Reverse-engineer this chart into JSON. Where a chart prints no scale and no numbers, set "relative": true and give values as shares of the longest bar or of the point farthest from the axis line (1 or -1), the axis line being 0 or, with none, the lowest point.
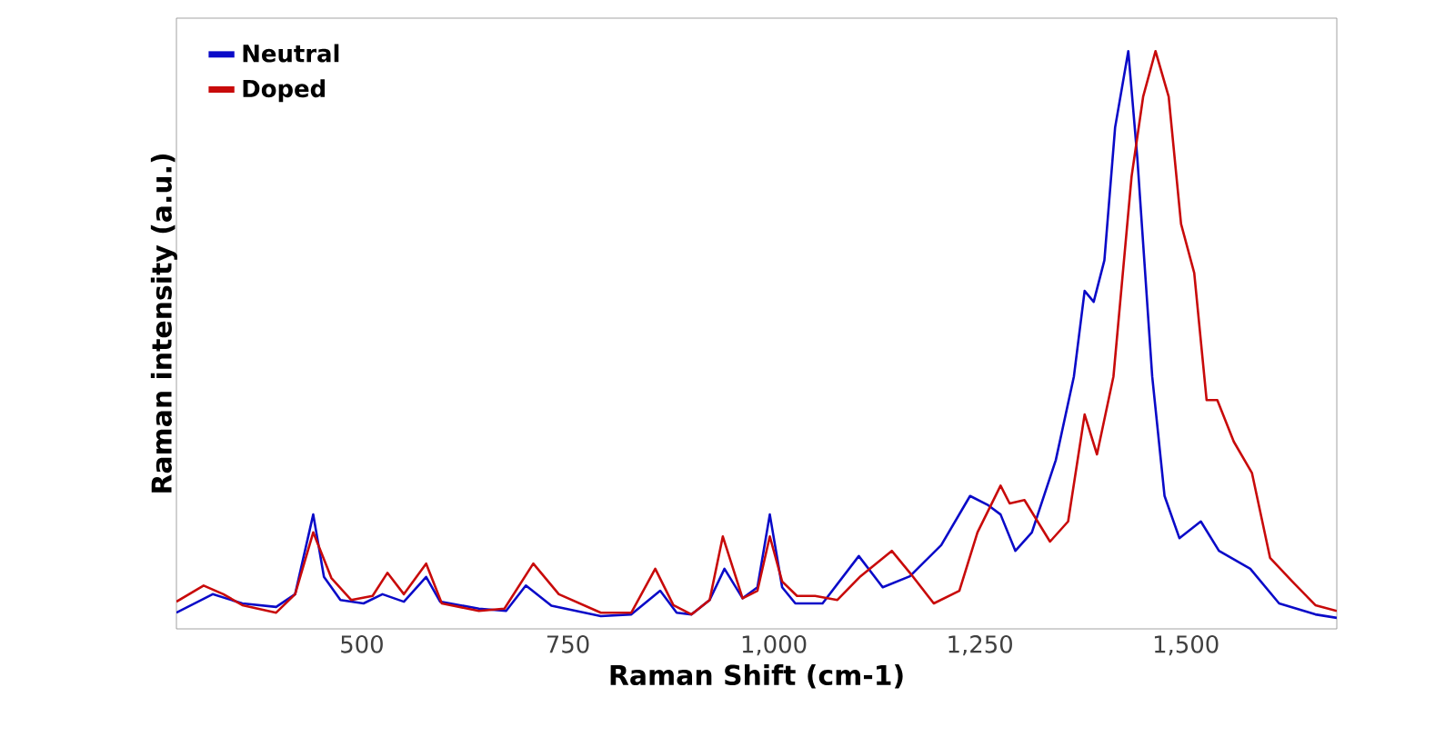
{
  "chart_data": {
    "type": "line",
    "xlabel": "Raman Shift (cm-1)",
    "ylabel": "Raman intensity (a.u.)",
    "relative": true,
    "legend": "top left",
    "xlim": [
      275,
      1683
    ],
    "xticks": [
      500,
      750,
      {
        "value": 1000,
        "label": "1,000"
      },
      {
        "value": 1250,
        "label": "1,250"
      },
      {
        "value": 1500,
        "label": "1,500"
      }
    ],
    "series": [
      {
        "name": "Neutral",
        "color": "#0a0ac8",
        "x": [
          275,
          319,
          355,
          396,
          419,
          441,
          454,
          474,
          502,
          525,
          551,
          578,
          595,
          642,
          675,
          699,
          730,
          790,
          827,
          862,
          882,
          900,
          922,
          940,
          962,
          980,
          995,
          1010,
          1026,
          1059,
          1103,
          1132,
          1165,
          1203,
          1238,
          1260,
          1275,
          1293,
          1313,
          1342,
          1364,
          1377,
          1388,
          1401,
          1414,
          1430,
          1441,
          1459,
          1474,
          1492,
          1518,
          1540,
          1578,
          1613,
          1657,
          1683
        ],
        "values": [
          0.028,
          0.06,
          0.044,
          0.038,
          0.06,
          0.198,
          0.09,
          0.05,
          0.044,
          0.06,
          0.047,
          0.09,
          0.047,
          0.035,
          0.031,
          0.075,
          0.04,
          0.022,
          0.025,
          0.066,
          0.028,
          0.025,
          0.05,
          0.104,
          0.053,
          0.072,
          0.198,
          0.072,
          0.044,
          0.044,
          0.126,
          0.072,
          0.091,
          0.145,
          0.23,
          0.214,
          0.198,
          0.135,
          0.167,
          0.292,
          0.437,
          0.585,
          0.566,
          0.638,
          0.868,
          1.0,
          0.814,
          0.437,
          0.23,
          0.157,
          0.186,
          0.135,
          0.104,
          0.044,
          0.025,
          0.019
        ]
      },
      {
        "name": "Doped",
        "color": "#c80a0a",
        "x": [
          275,
          308,
          332,
          355,
          396,
          419,
          441,
          463,
          487,
          513,
          531,
          551,
          578,
          597,
          642,
          673,
          708,
          739,
          790,
          827,
          856,
          878,
          900,
          922,
          938,
          962,
          980,
          995,
          1010,
          1028,
          1050,
          1077,
          1105,
          1143,
          1165,
          1194,
          1225,
          1247,
          1275,
          1286,
          1304,
          1335,
          1357,
          1377,
          1392,
          1412,
          1434,
          1448,
          1463,
          1479,
          1494,
          1510,
          1525,
          1538,
          1558,
          1580,
          1602,
          1629,
          1657,
          1683
        ],
        "values": [
          0.047,
          0.075,
          0.06,
          0.041,
          0.028,
          0.06,
          0.167,
          0.088,
          0.05,
          0.057,
          0.097,
          0.06,
          0.113,
          0.044,
          0.031,
          0.035,
          0.113,
          0.06,
          0.028,
          0.028,
          0.104,
          0.041,
          0.025,
          0.05,
          0.16,
          0.053,
          0.066,
          0.16,
          0.082,
          0.057,
          0.057,
          0.05,
          0.091,
          0.135,
          0.097,
          0.044,
          0.066,
          0.167,
          0.248,
          0.217,
          0.223,
          0.151,
          0.186,
          0.371,
          0.302,
          0.437,
          0.783,
          0.921,
          1.0,
          0.921,
          0.701,
          0.616,
          0.396,
          0.396,
          0.324,
          0.27,
          0.123,
          0.082,
          0.041,
          0.031
        ]
      }
    ]
  }
}
